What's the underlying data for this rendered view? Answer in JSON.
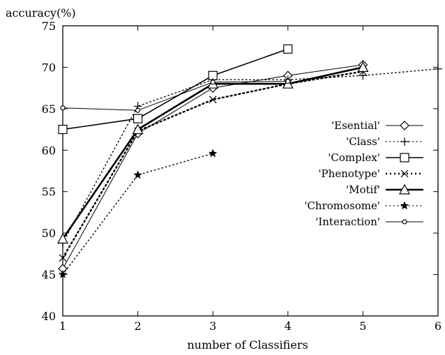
{
  "chart_data": {
    "type": "line",
    "title": "",
    "xlabel": "number of Classifiers",
    "ylabel": "accuracy(%)",
    "xlim": [
      1,
      6
    ],
    "ylim": [
      40,
      75
    ],
    "xticks": [
      1,
      2,
      3,
      4,
      5,
      6
    ],
    "yticks": [
      40,
      45,
      50,
      55,
      60,
      65,
      70,
      75
    ],
    "grid": false,
    "legend_position": "right",
    "series": [
      {
        "name": "'Esential'",
        "marker": "diamond",
        "style": "solid-thin",
        "x": [
          1,
          2,
          3,
          4,
          5
        ],
        "y": [
          45.7,
          62.0,
          67.5,
          69.0,
          70.3
        ]
      },
      {
        "name": "'Class'",
        "marker": "plus",
        "style": "dotted",
        "x": [
          1,
          2,
          3,
          4,
          5,
          6
        ],
        "y": [
          48.8,
          65.3,
          68.5,
          68.5,
          69.0,
          69.8
        ]
      },
      {
        "name": "'Complex'",
        "marker": "square",
        "style": "solid",
        "x": [
          1,
          2,
          3,
          4
        ],
        "y": [
          62.5,
          63.8,
          69.0,
          72.2
        ]
      },
      {
        "name": "'Phenotype'",
        "marker": "x",
        "style": "dotted-bold",
        "x": [
          1,
          2,
          3,
          4,
          5
        ],
        "y": [
          47.0,
          62.3,
          66.1,
          68.0,
          69.5
        ]
      },
      {
        "name": "'Motif'",
        "marker": "triangle",
        "style": "solid-bold",
        "x": [
          1,
          2,
          3,
          4,
          5
        ],
        "y": [
          49.3,
          62.5,
          68.0,
          68.0,
          70.0
        ]
      },
      {
        "name": "'Chromosome'",
        "marker": "star",
        "style": "dotted",
        "x": [
          1,
          2,
          3
        ],
        "y": [
          45.0,
          57.0,
          59.6
        ]
      },
      {
        "name": "'Interaction'",
        "marker": "circle",
        "style": "solid-thin",
        "x": [
          1,
          2,
          3,
          4
        ],
        "y": [
          65.1,
          64.8,
          68.2,
          68.3
        ]
      }
    ]
  }
}
